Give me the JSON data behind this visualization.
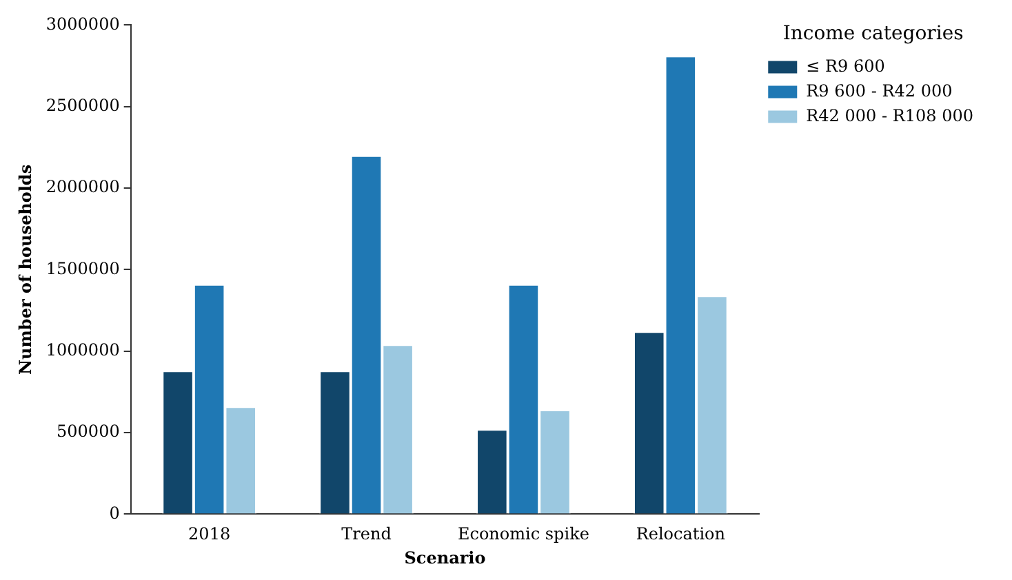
{
  "chart_data": {
    "type": "bar",
    "xlabel": "Scenario",
    "ylabel": "Number of households",
    "legend_title": "Income categories",
    "categories": [
      "2018",
      "Trend",
      "Economic spike",
      "Relocation"
    ],
    "series": [
      {
        "name": "≤ R9 600",
        "color": "#11466a",
        "values": [
          880000,
          880000,
          520000,
          1120000
        ]
      },
      {
        "name": "R9 600 - R42 000",
        "color": "#1f78b4",
        "values": [
          1410000,
          2200000,
          1410000,
          2810000
        ]
      },
      {
        "name": "R42 000 - R108 000",
        "color": "#9bc8e0",
        "values": [
          660000,
          1040000,
          640000,
          1340000
        ]
      }
    ],
    "ylim": [
      0,
      3000000
    ],
    "yticks": [
      0,
      500000,
      1000000,
      1500000,
      2000000,
      2500000,
      3000000
    ],
    "grid": false,
    "legend": "right"
  }
}
